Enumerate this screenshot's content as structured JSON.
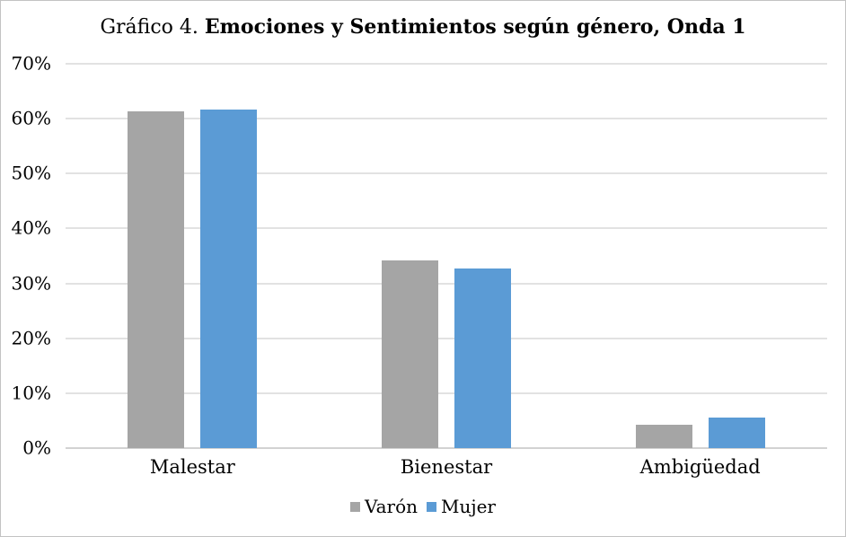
{
  "title": {
    "prefix": "Gráfico 4.",
    "main": "Emociones y Sentimientos según género, Onda 1"
  },
  "chart_data": {
    "type": "bar",
    "title": "Gráfico 4. Emociones y Sentimientos según género, Onda 1",
    "categories": [
      "Malestar",
      "Bienestar",
      "Ambigüedad"
    ],
    "series": [
      {
        "name": "Varón",
        "color": "#A5A5A5",
        "values": [
          61.4,
          34.2,
          4.3
        ]
      },
      {
        "name": "Mujer",
        "color": "#5B9BD5",
        "values": [
          61.7,
          32.7,
          5.6
        ]
      }
    ],
    "xlabel": "",
    "ylabel": "",
    "ylim": [
      0,
      70
    ],
    "ytick_values": [
      0,
      10,
      20,
      30,
      40,
      50,
      60,
      70
    ],
    "yticks": [
      "0%",
      "10%",
      "20%",
      "30%",
      "40%",
      "50%",
      "60%",
      "70%"
    ],
    "grid": true,
    "legend_position": "bottom",
    "colors": {
      "gridline": "#E2E2E2",
      "axis_line": "#D2D2D2",
      "text": "#000000",
      "background": "#FFFFFF"
    }
  }
}
